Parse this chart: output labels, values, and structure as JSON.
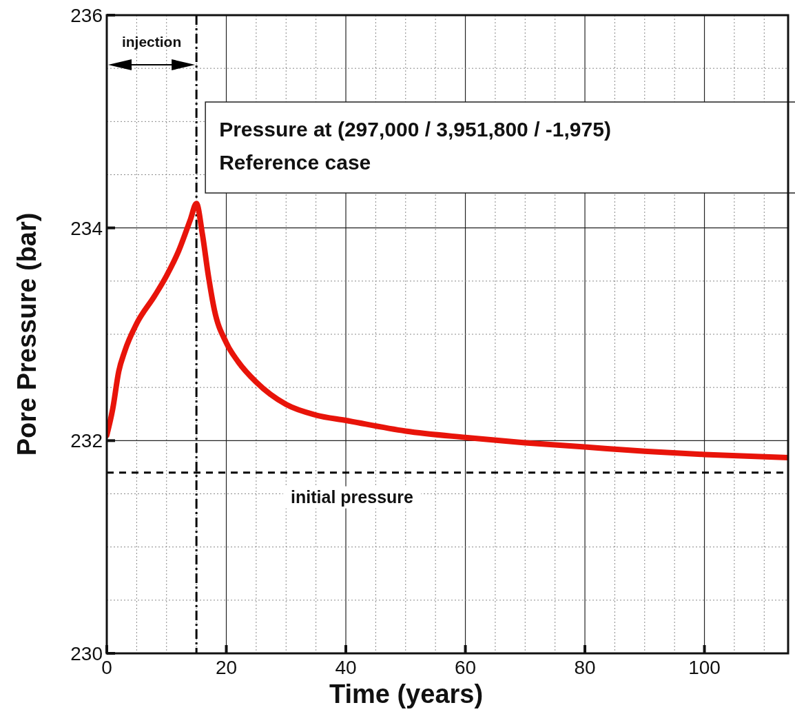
{
  "chart_data": {
    "type": "line",
    "xlabel": "Time (years)",
    "ylabel": "Pore Pressure (bar)",
    "xlim": [
      0,
      114
    ],
    "ylim": [
      230,
      236
    ],
    "xticks": [
      0,
      {
        "value": 5,
        "label": null
      },
      {
        "value": 10,
        "label": null
      },
      {
        "value": 15,
        "label": null
      },
      20,
      {
        "value": 25,
        "label": null
      },
      {
        "value": 30,
        "label": null
      },
      {
        "value": 35,
        "label": null
      },
      40,
      {
        "value": 45,
        "label": null
      },
      {
        "value": 50,
        "label": null
      },
      {
        "value": 55,
        "label": null
      },
      60,
      {
        "value": 65,
        "label": null
      },
      {
        "value": 70,
        "label": null
      },
      {
        "value": 75,
        "label": null
      },
      80,
      {
        "value": 85,
        "label": null
      },
      {
        "value": 90,
        "label": null
      },
      {
        "value": 95,
        "label": null
      },
      100,
      {
        "value": 105,
        "label": null
      },
      {
        "value": 110,
        "label": null
      }
    ],
    "yticks": [
      230,
      {
        "value": 230.5,
        "label": null
      },
      {
        "value": 231,
        "label": null
      },
      {
        "value": 231.5,
        "label": null
      },
      232,
      {
        "value": 232.5,
        "label": null
      },
      {
        "value": 233,
        "label": null
      },
      {
        "value": 233.5,
        "label": null
      },
      234,
      {
        "value": 234.5,
        "label": null
      },
      {
        "value": 235,
        "label": null
      },
      {
        "value": 235.5,
        "label": null
      },
      236
    ],
    "grid": true,
    "line_style": "solid",
    "marker": "none",
    "x": [
      0,
      1,
      2,
      3,
      5,
      8,
      10,
      12,
      14,
      15,
      16,
      17,
      18,
      20,
      22,
      25,
      30,
      35,
      40,
      50,
      60,
      70,
      80,
      90,
      100,
      114
    ],
    "series": [
      {
        "color": "#e8140a",
        "values": [
          232.05,
          232.3,
          232.65,
          232.84,
          233.1,
          233.36,
          233.55,
          233.78,
          234.08,
          234.23,
          233.94,
          233.55,
          233.23,
          232.92,
          232.74,
          232.55,
          232.34,
          232.24,
          232.19,
          232.09,
          232.03,
          231.98,
          231.94,
          231.9,
          231.87,
          231.84
        ]
      }
    ],
    "ref_lines": [
      {
        "axis": "x",
        "value": 15,
        "label": "injection",
        "color": "#000000",
        "line_style": "dashed"
      },
      {
        "axis": "y",
        "value": 231.7,
        "label": "initial pressure",
        "color": "#000000",
        "line_style": "dashed"
      }
    ],
    "annotations": [
      "Pressure at (297,000 / 3,951,800 / -1,975)",
      "Reference case"
    ]
  }
}
